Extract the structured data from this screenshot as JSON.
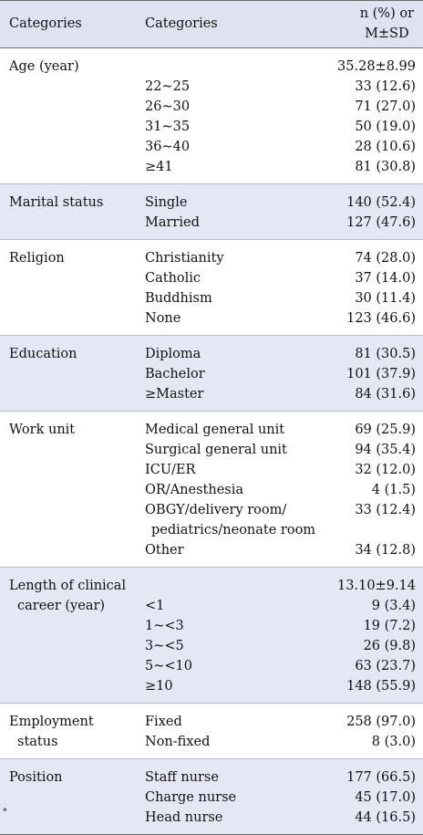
{
  "header": {
    "col1": "Categories",
    "col2": "Categories",
    "col3_line1": "n (%)  or",
    "col3_line2": "M±SD"
  },
  "groups": [
    {
      "label": [
        "Age (year)"
      ],
      "rows": [
        {
          "category": "",
          "value": "35.28±8.99"
        },
        {
          "category": "22~25",
          "value": "33 (12.6)"
        },
        {
          "category": "26~30",
          "value": "71 (27.0)"
        },
        {
          "category": "31~35",
          "value": "50 (19.0)"
        },
        {
          "category": "36~40",
          "value": "28 (10.6)"
        },
        {
          "category": "≥41",
          "value": "81 (30.8)"
        }
      ]
    },
    {
      "label": [
        "Marital status"
      ],
      "rows": [
        {
          "category": "Single",
          "value": "140 (52.4)"
        },
        {
          "category": "Married",
          "value": "127 (47.6)"
        }
      ]
    },
    {
      "label": [
        "Religion"
      ],
      "rows": [
        {
          "category": "Christianity",
          "value": "74 (28.0)"
        },
        {
          "category": "Catholic",
          "value": "37 (14.0)"
        },
        {
          "category": "Buddhism",
          "value": "30 (11.4)"
        },
        {
          "category": "None",
          "value": "123 (46.6)"
        }
      ]
    },
    {
      "label": [
        "Education"
      ],
      "rows": [
        {
          "category": "Diploma",
          "value": "81 (30.5)"
        },
        {
          "category": "Bachelor",
          "value": "101 (37.9)"
        },
        {
          "category": "≥Master",
          "value": "84 (31.6)"
        }
      ]
    },
    {
      "label": [
        "Work unit"
      ],
      "rows": [
        {
          "category": "Medical general unit",
          "value": "69 (25.9)"
        },
        {
          "category": "Surgical general unit",
          "value": "94 (35.4)"
        },
        {
          "category": "ICU/ER",
          "value": "32 (12.0)"
        },
        {
          "category": "OR/Anesthesia",
          "value": "4 (1.5)"
        },
        {
          "category": "OBGY/delivery room/",
          "value": "33 (12.4)"
        },
        {
          "category": "pediatrics/neonate room",
          "value": "",
          "indent": true
        },
        {
          "category": "Other",
          "value": "34 (12.8)"
        }
      ]
    },
    {
      "label": [
        "Length of clinical",
        "career (year)"
      ],
      "rows": [
        {
          "category": "",
          "value": "13.10±9.14"
        },
        {
          "category": "<1",
          "value": "9 (3.4)"
        },
        {
          "category": "1~<3",
          "value": "19 (7.2)"
        },
        {
          "category": "3~<5",
          "value": "26 (9.8)"
        },
        {
          "category": "5~<10",
          "value": "63 (23.7)"
        },
        {
          "category": "≥10",
          "value": "148 (55.9)"
        }
      ]
    },
    {
      "label": [
        "Employment",
        "status"
      ],
      "rows": [
        {
          "category": "Fixed",
          "value": "258 (97.0)"
        },
        {
          "category": "Non-fixed",
          "value": "8 (3.0)"
        }
      ]
    },
    {
      "label": [
        "Position"
      ],
      "rows": [
        {
          "category": "Staff nurse",
          "value": "177 (66.5)"
        },
        {
          "category": "Charge nurse",
          "value": "45 (17.0)"
        },
        {
          "category": "Head nurse",
          "value": "44 (16.5)"
        }
      ]
    }
  ],
  "footnote_mark": "*"
}
